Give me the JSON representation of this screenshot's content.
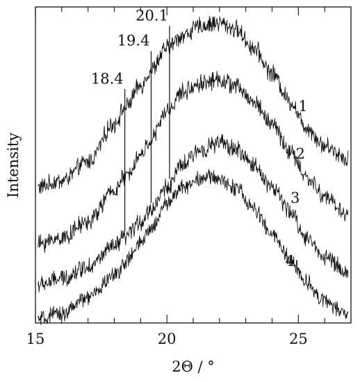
{
  "chart_data": {
    "type": "line",
    "xlabel": "2Θ / °",
    "ylabel": "Intensity",
    "xlim": [
      15,
      27
    ],
    "ylim": [
      0,
      100
    ],
    "x_ticks": [
      15,
      20,
      25
    ],
    "y_ticks": [],
    "grid": false,
    "legend": "none",
    "line_color": "#111111",
    "series": [
      {
        "name": "1",
        "noise": 2.2,
        "points": [
          [
            15.1,
            43
          ],
          [
            16,
            45
          ],
          [
            17,
            51
          ],
          [
            18,
            63
          ],
          [
            18.4,
            68
          ],
          [
            19,
            75
          ],
          [
            19.4,
            80
          ],
          [
            20,
            87
          ],
          [
            20.6,
            91
          ],
          [
            21.3,
            94
          ],
          [
            22.0,
            95
          ],
          [
            22.6,
            93
          ],
          [
            23.3,
            87
          ],
          [
            24.0,
            79
          ],
          [
            24.7,
            70
          ],
          [
            25.3,
            62
          ],
          [
            26,
            56
          ],
          [
            26.9,
            52
          ]
        ]
      },
      {
        "name": "2",
        "noise": 2.2,
        "points": [
          [
            15.1,
            25
          ],
          [
            16,
            27
          ],
          [
            17,
            32
          ],
          [
            18,
            42
          ],
          [
            18.4,
            46
          ],
          [
            19,
            53
          ],
          [
            19.4,
            58
          ],
          [
            20,
            67
          ],
          [
            20.6,
            73
          ],
          [
            21.3,
            76
          ],
          [
            22.0,
            77
          ],
          [
            22.6,
            75
          ],
          [
            23.3,
            70
          ],
          [
            24.0,
            63
          ],
          [
            24.7,
            54
          ],
          [
            25.3,
            46
          ],
          [
            26,
            40
          ],
          [
            26.9,
            34
          ]
        ]
      },
      {
        "name": "3",
        "noise": 2.2,
        "points": [
          [
            15.1,
            12
          ],
          [
            16,
            14
          ],
          [
            17,
            18
          ],
          [
            18,
            24
          ],
          [
            18.4,
            27
          ],
          [
            19,
            32
          ],
          [
            19.4,
            36
          ],
          [
            20,
            43
          ],
          [
            20.6,
            50
          ],
          [
            21.3,
            55
          ],
          [
            22.0,
            57
          ],
          [
            22.6,
            55
          ],
          [
            23.3,
            50
          ],
          [
            24.0,
            43
          ],
          [
            24.7,
            35
          ],
          [
            25.3,
            27
          ],
          [
            26,
            21
          ],
          [
            26.9,
            16
          ]
        ]
      },
      {
        "name": "4",
        "noise": 2.0,
        "points": [
          [
            15.1,
            1
          ],
          [
            16,
            3
          ],
          [
            17,
            8
          ],
          [
            18,
            15
          ],
          [
            18.4,
            19
          ],
          [
            19,
            25
          ],
          [
            19.4,
            30
          ],
          [
            20,
            38
          ],
          [
            20.6,
            43
          ],
          [
            21.3,
            46
          ],
          [
            21.8,
            46
          ],
          [
            22.6,
            43
          ],
          [
            23.3,
            36
          ],
          [
            24.0,
            28
          ],
          [
            24.7,
            20
          ],
          [
            25.3,
            13
          ],
          [
            26,
            7
          ],
          [
            26.9,
            2
          ]
        ]
      }
    ],
    "peak_markers": [
      {
        "x": 18.4,
        "label": "18.4",
        "y_top": 74
      },
      {
        "x": 19.4,
        "label": "19.4",
        "y_top": 86
      },
      {
        "x": 20.1,
        "label": "20.1",
        "y_top": 94
      }
    ],
    "curve_labels": [
      {
        "text": "1",
        "x": 25.0,
        "y": 67
      },
      {
        "text": "2",
        "x": 24.9,
        "y": 52
      },
      {
        "text": "3",
        "x": 24.7,
        "y": 38
      },
      {
        "text": "4",
        "x": 24.5,
        "y": 18
      }
    ]
  }
}
